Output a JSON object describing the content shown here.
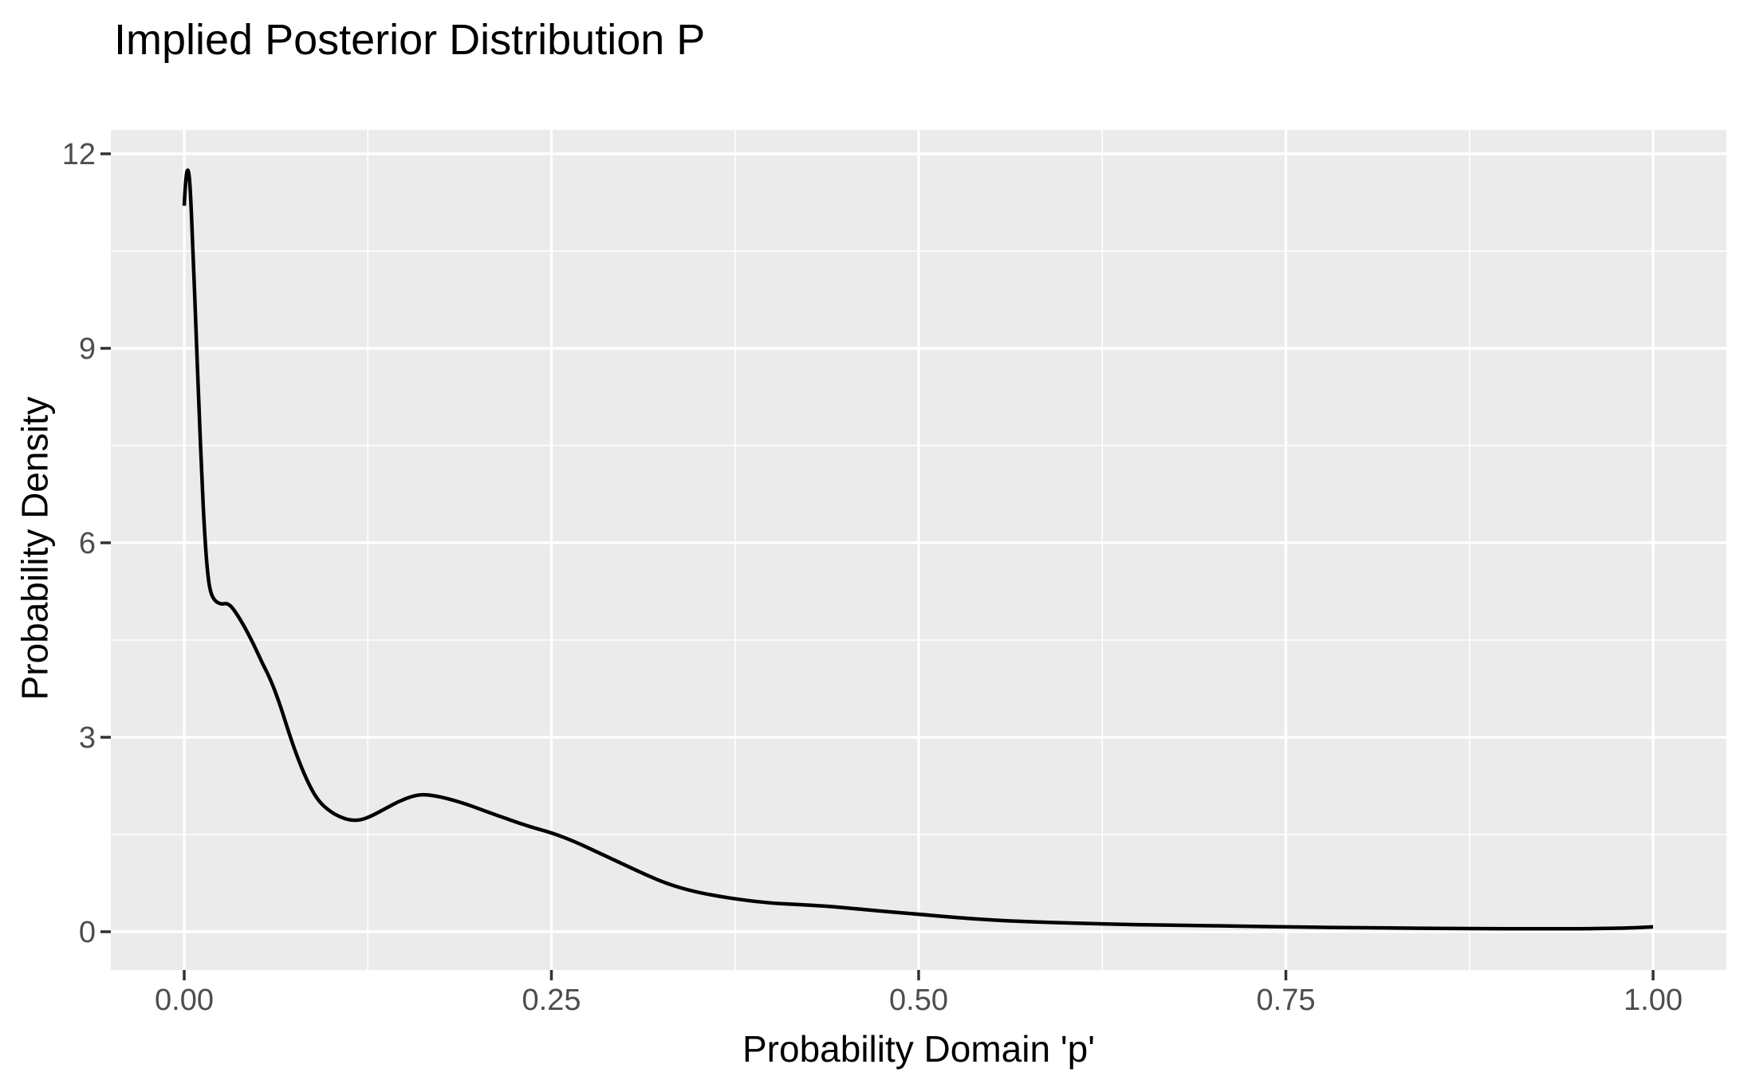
{
  "figure": {
    "title": "Implied Posterior Distribution P",
    "x_axis_title": "Probability Domain 'p'",
    "y_axis_title": "Probability Density"
  },
  "chart_data": {
    "type": "line",
    "title": "Implied Posterior Distribution P",
    "xlabel": "Probability Domain 'p'",
    "ylabel": "Probability Density",
    "xlim": [
      0,
      1
    ],
    "ylim": [
      0,
      12
    ],
    "grid": "on",
    "legend": "none",
    "x_ticks": {
      "values": [
        0,
        0.25,
        0.5,
        0.75,
        1.0
      ],
      "labels": [
        "0.00",
        "0.25",
        "0.50",
        "0.75",
        "1.00"
      ]
    },
    "y_ticks": {
      "values": [
        0,
        3,
        6,
        9,
        12
      ],
      "labels": [
        "0",
        "3",
        "6",
        "9",
        "12"
      ]
    },
    "x_minor": [
      0.125,
      0.375,
      0.625,
      0.875
    ],
    "y_minor": [
      1.5,
      4.5,
      7.5,
      10.5
    ],
    "colors": {
      "panel_background": "#EBEBEB",
      "gridline": "#FFFFFF",
      "curve": "#000000",
      "tick_mark": "#333333",
      "tick_label": "#4D4D4D",
      "title_text": "#000000"
    },
    "series": [
      {
        "name": "posterior_density",
        "x": [
          0.0,
          0.001,
          0.0025,
          0.004,
          0.006,
          0.008,
          0.01,
          0.012,
          0.014,
          0.016,
          0.018,
          0.021,
          0.025,
          0.029,
          0.033,
          0.04,
          0.047,
          0.053,
          0.059,
          0.065,
          0.07,
          0.075,
          0.08,
          0.086,
          0.092,
          0.099,
          0.106,
          0.113,
          0.12,
          0.128,
          0.137,
          0.146,
          0.155,
          0.162,
          0.17,
          0.18,
          0.192,
          0.205,
          0.22,
          0.235,
          0.25,
          0.266,
          0.283,
          0.3,
          0.315,
          0.33,
          0.347,
          0.363,
          0.38,
          0.4,
          0.418,
          0.435,
          0.455,
          0.478,
          0.5,
          0.525,
          0.55,
          0.58,
          0.61,
          0.645,
          0.68,
          0.72,
          0.76,
          0.8,
          0.84,
          0.88,
          0.92,
          0.95,
          0.97,
          0.985,
          0.995,
          1.0
        ],
        "y": [
          11.2,
          11.62,
          11.8,
          11.55,
          10.5,
          9.3,
          8.1,
          7.0,
          6.1,
          5.5,
          5.22,
          5.1,
          5.05,
          5.07,
          5.0,
          4.75,
          4.45,
          4.15,
          3.88,
          3.52,
          3.16,
          2.82,
          2.52,
          2.22,
          2.0,
          1.86,
          1.77,
          1.72,
          1.72,
          1.79,
          1.9,
          2.01,
          2.09,
          2.12,
          2.1,
          2.05,
          1.97,
          1.86,
          1.74,
          1.62,
          1.53,
          1.39,
          1.21,
          1.03,
          0.87,
          0.73,
          0.62,
          0.55,
          0.49,
          0.44,
          0.42,
          0.4,
          0.36,
          0.31,
          0.27,
          0.22,
          0.18,
          0.15,
          0.13,
          0.11,
          0.1,
          0.085,
          0.072,
          0.062,
          0.054,
          0.048,
          0.045,
          0.046,
          0.052,
          0.058,
          0.07,
          0.075
        ]
      }
    ]
  }
}
